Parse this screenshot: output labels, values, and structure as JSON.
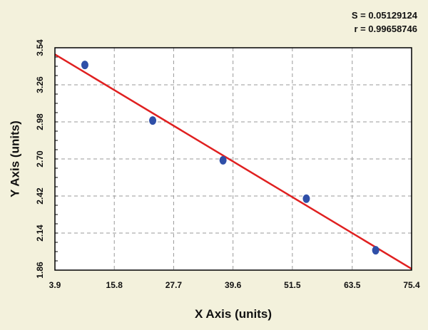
{
  "stats": {
    "s_line": "S = 0.05129124",
    "r_line": "r = 0.99658746"
  },
  "colors": {
    "background": "#f3f1dc",
    "plot_bg": "#ffffff",
    "grid": "#9a9a9a",
    "point": "#2f4fa8",
    "fit_line": "#e02020"
  },
  "chart_data": {
    "type": "scatter",
    "title": "",
    "xlabel": "X Axis (units)",
    "ylabel": "Y Axis (units)",
    "xlim": [
      3.9,
      75.4
    ],
    "ylim": [
      1.86,
      3.54
    ],
    "x_ticks": [
      3.9,
      15.8,
      27.7,
      39.6,
      51.5,
      63.5,
      75.4
    ],
    "x_tick_labels": [
      "3.9",
      "15.8",
      "27.7",
      "39.6",
      "51.5",
      "63.5",
      "75.4"
    ],
    "y_ticks": [
      1.86,
      2.14,
      2.42,
      2.7,
      2.98,
      3.26,
      3.54
    ],
    "y_tick_labels": [
      "1.86",
      "2.14",
      "2.42",
      "2.70",
      "2.98",
      "3.26",
      "3.54"
    ],
    "grid": true,
    "series": [
      {
        "type": "scatter",
        "points": [
          {
            "x": 9.9,
            "y": 3.41
          },
          {
            "x": 23.5,
            "y": 2.99
          },
          {
            "x": 37.6,
            "y": 2.69
          },
          {
            "x": 54.3,
            "y": 2.4
          },
          {
            "x": 68.2,
            "y": 2.01
          }
        ]
      },
      {
        "type": "line",
        "points": [
          {
            "x": 3.9,
            "y": 3.49
          },
          {
            "x": 75.4,
            "y": 1.87
          }
        ]
      }
    ]
  }
}
